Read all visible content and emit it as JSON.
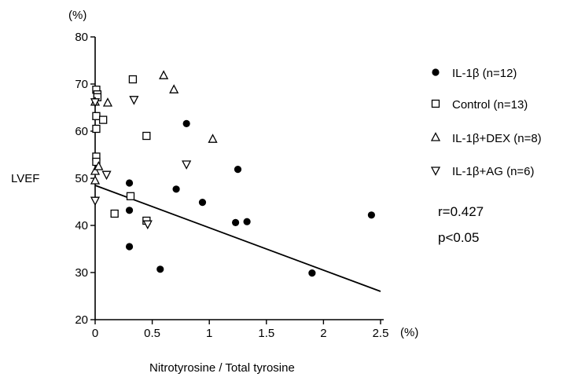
{
  "chart_data": {
    "type": "scatter",
    "xlabel": "Nitrotyrosine / Total tyrosine",
    "x_unit": "(%)",
    "ylabel": "LVEF",
    "y_unit": "(%)",
    "xlim": [
      0,
      2.5
    ],
    "ylim": [
      20,
      80
    ],
    "x_ticks": [
      "0",
      "0.5",
      "1",
      "1.5",
      "2",
      "2.5"
    ],
    "y_ticks": [
      "20",
      "30",
      "40",
      "50",
      "60",
      "70",
      "80"
    ],
    "grid": false,
    "legend_position": "right",
    "series": [
      {
        "name": "IL-1β  (n=12)",
        "marker": "filled-circle",
        "points": [
          {
            "x": 0.3,
            "y": 49.0
          },
          {
            "x": 0.3,
            "y": 43.2
          },
          {
            "x": 0.3,
            "y": 35.5
          },
          {
            "x": 0.57,
            "y": 30.7
          },
          {
            "x": 0.71,
            "y": 47.7
          },
          {
            "x": 0.8,
            "y": 61.6
          },
          {
            "x": 0.94,
            "y": 44.9
          },
          {
            "x": 1.23,
            "y": 40.6
          },
          {
            "x": 1.25,
            "y": 51.9
          },
          {
            "x": 1.33,
            "y": 40.8
          },
          {
            "x": 1.9,
            "y": 29.9
          },
          {
            "x": 2.42,
            "y": 42.2
          }
        ]
      },
      {
        "name": "Control  (n=13)",
        "marker": "open-square",
        "points": [
          {
            "x": 0.01,
            "y": 68.8
          },
          {
            "x": 0.02,
            "y": 67.8
          },
          {
            "x": 0.01,
            "y": 63.2
          },
          {
            "x": 0.01,
            "y": 60.5
          },
          {
            "x": 0.01,
            "y": 54.6
          },
          {
            "x": 0.01,
            "y": 53.5
          },
          {
            "x": 0.07,
            "y": 62.4
          },
          {
            "x": 0.17,
            "y": 42.5
          },
          {
            "x": 0.31,
            "y": 46.2
          },
          {
            "x": 0.33,
            "y": 71.0
          },
          {
            "x": 0.45,
            "y": 59.0
          },
          {
            "x": 0.45,
            "y": 41.0
          },
          {
            "x": 0.02,
            "y": 67.2
          }
        ]
      },
      {
        "name": "IL-1β+DEX  (n=8)",
        "marker": "open-triangle-up",
        "points": [
          {
            "x": 0.0,
            "y": 66.2
          },
          {
            "x": 0.11,
            "y": 66.0
          },
          {
            "x": 0.0,
            "y": 51.5
          },
          {
            "x": 0.0,
            "y": 49.5
          },
          {
            "x": 0.6,
            "y": 71.8
          },
          {
            "x": 0.69,
            "y": 68.8
          },
          {
            "x": 1.03,
            "y": 58.3
          },
          {
            "x": 0.03,
            "y": 52.5
          }
        ]
      },
      {
        "name": "IL-1β+AG  (n=6)",
        "marker": "open-triangle-down",
        "points": [
          {
            "x": 0.0,
            "y": 66.2
          },
          {
            "x": 0.34,
            "y": 66.7
          },
          {
            "x": 0.1,
            "y": 50.8
          },
          {
            "x": 0.0,
            "y": 45.3
          },
          {
            "x": 0.46,
            "y": 40.3
          },
          {
            "x": 0.8,
            "y": 53.0
          }
        ]
      }
    ],
    "regression": {
      "x1": 0,
      "y1": 48.5,
      "x2": 2.5,
      "y2": 26.0
    },
    "annotations": [
      "r=0.427",
      "p<0.05"
    ]
  }
}
